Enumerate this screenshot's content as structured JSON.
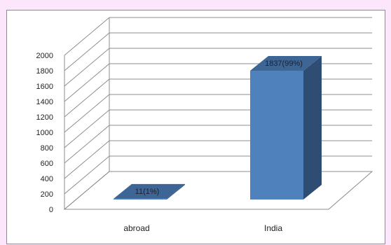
{
  "chart_data": {
    "type": "bar",
    "title": "",
    "xlabel": "",
    "ylabel": "",
    "categories": [
      "abroad",
      "India"
    ],
    "values": [
      11,
      1837
    ],
    "data_labels": [
      "11(1%)",
      "1837(99%)"
    ],
    "ylim": [
      0,
      2000
    ],
    "yticks": [
      "0",
      "200",
      "400",
      "600",
      "800",
      "1000",
      "1200",
      "1400",
      "1600",
      "1800",
      "2000"
    ],
    "grid": true,
    "legend": "none",
    "projection": "3d",
    "colors": {
      "bar_front": "#4f81bd",
      "bar_side": "#2f4d73",
      "bar_top": "#3d6596",
      "gridline": "#8c8c8c"
    }
  }
}
